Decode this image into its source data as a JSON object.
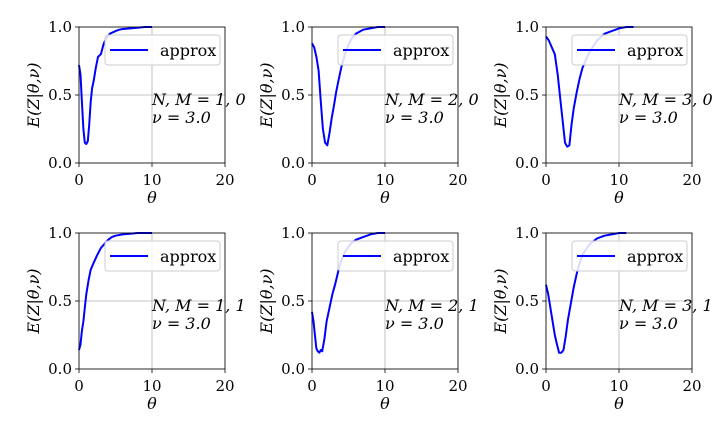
{
  "figure": {
    "colors": {
      "series": "#0000ff",
      "grid": "#b0b0b0",
      "axes": "#000000",
      "legend_border": "#cccccc"
    }
  },
  "chart_data": [
    {
      "type": "line",
      "xlabel": "θ",
      "ylabel": "E(Z|θ,ν)",
      "xlim": [
        0,
        20
      ],
      "ylim": [
        0,
        1
      ],
      "xticks": [
        "0",
        "10",
        "20"
      ],
      "yticks": [
        "0.0",
        "0.5",
        "1.0"
      ],
      "grid": true,
      "legend_placement": "top-right",
      "annotation": [
        "N, M = 1, 0",
        "ν = 3.0"
      ],
      "series": [
        {
          "name": "approx",
          "x": [
            0,
            0.2,
            0.4,
            0.6,
            0.8,
            1.0,
            1.2,
            1.4,
            1.6,
            1.8,
            2.0,
            2.3,
            2.6,
            3.0,
            3.4,
            3.8,
            4.2,
            4.6,
            5.0,
            5.5,
            6.0,
            7.0,
            8.0,
            9.0,
            10.0
          ],
          "y": [
            0.72,
            0.65,
            0.45,
            0.25,
            0.15,
            0.14,
            0.16,
            0.28,
            0.45,
            0.55,
            0.6,
            0.7,
            0.78,
            0.8,
            0.88,
            0.92,
            0.95,
            0.96,
            0.97,
            0.98,
            0.985,
            0.99,
            0.995,
            1.0,
            1.0
          ]
        }
      ]
    },
    {
      "type": "line",
      "xlabel": "θ",
      "ylabel": "E(Z|θ,ν)",
      "xlim": [
        0,
        20
      ],
      "ylim": [
        0,
        1
      ],
      "xticks": [
        "0",
        "10",
        "20"
      ],
      "yticks": [
        "0.0",
        "0.5",
        "1.0"
      ],
      "grid": true,
      "legend_placement": "top-right",
      "annotation": [
        "N, M = 2, 0",
        "ν = 3.0"
      ],
      "series": [
        {
          "name": "approx",
          "x": [
            0,
            0.3,
            0.6,
            0.9,
            1.2,
            1.5,
            1.8,
            2.1,
            2.4,
            2.7,
            3.0,
            3.3,
            3.6,
            4.0,
            4.5,
            5.0,
            5.5,
            6.0,
            7.0,
            8.0,
            9.0,
            10.0
          ],
          "y": [
            0.88,
            0.85,
            0.78,
            0.68,
            0.45,
            0.25,
            0.15,
            0.13,
            0.22,
            0.33,
            0.42,
            0.52,
            0.6,
            0.7,
            0.8,
            0.87,
            0.92,
            0.95,
            0.98,
            0.99,
            1.0,
            1.0
          ]
        }
      ]
    },
    {
      "type": "line",
      "xlabel": "θ",
      "ylabel": "E(Z|θ,ν)",
      "xlim": [
        0,
        20
      ],
      "ylim": [
        0,
        1
      ],
      "xticks": [
        "0",
        "10",
        "20"
      ],
      "yticks": [
        "0.0",
        "0.5",
        "1.0"
      ],
      "grid": true,
      "legend_placement": "top-right",
      "annotation": [
        "N, M = 3, 0",
        "ν = 3.0"
      ],
      "series": [
        {
          "name": "approx",
          "x": [
            0,
            0.4,
            0.8,
            1.2,
            1.6,
            2.0,
            2.3,
            2.6,
            2.9,
            3.2,
            3.5,
            3.8,
            4.2,
            4.6,
            5.0,
            5.5,
            6.0,
            7.0,
            8.0,
            9.0,
            10.0,
            11.0,
            12.0
          ],
          "y": [
            0.93,
            0.9,
            0.85,
            0.8,
            0.65,
            0.45,
            0.3,
            0.15,
            0.12,
            0.13,
            0.28,
            0.4,
            0.52,
            0.62,
            0.7,
            0.76,
            0.82,
            0.9,
            0.95,
            0.97,
            0.99,
            1.0,
            1.0
          ]
        }
      ]
    },
    {
      "type": "line",
      "xlabel": "θ",
      "ylabel": "E(Z|θ,ν)",
      "xlim": [
        0,
        20
      ],
      "ylim": [
        0,
        1
      ],
      "xticks": [
        "0",
        "10",
        "20"
      ],
      "yticks": [
        "0.0",
        "0.5",
        "1.0"
      ],
      "grid": true,
      "legend_placement": "top-right",
      "annotation": [
        "N, M = 1, 1",
        "ν = 3.0"
      ],
      "series": [
        {
          "name": "approx",
          "x": [
            0,
            0.2,
            0.4,
            0.6,
            0.8,
            1.0,
            1.3,
            1.6,
            2.0,
            2.5,
            3.0,
            3.5,
            4.0,
            4.5,
            5.0,
            6.0,
            7.0,
            8.0,
            9.0,
            10.0
          ],
          "y": [
            0.14,
            0.18,
            0.28,
            0.35,
            0.45,
            0.55,
            0.65,
            0.73,
            0.78,
            0.84,
            0.89,
            0.92,
            0.95,
            0.97,
            0.98,
            0.99,
            0.995,
            1.0,
            1.0,
            1.0
          ]
        }
      ]
    },
    {
      "type": "line",
      "xlabel": "θ",
      "ylabel": "E(Z|θ,ν)",
      "xlim": [
        0,
        20
      ],
      "ylim": [
        0,
        1
      ],
      "xticks": [
        "0",
        "10",
        "20"
      ],
      "yticks": [
        "0.0",
        "0.5",
        "1.0"
      ],
      "grid": true,
      "legend_placement": "top-right",
      "annotation": [
        "N, M = 2, 1",
        "ν = 3.0"
      ],
      "series": [
        {
          "name": "approx",
          "x": [
            0,
            0.2,
            0.4,
            0.6,
            0.8,
            1.0,
            1.2,
            1.4,
            1.7,
            2.0,
            2.4,
            2.8,
            3.2,
            3.6,
            4.0,
            4.5,
            5.0,
            5.5,
            6.0,
            7.0,
            8.0,
            9.0,
            10.0
          ],
          "y": [
            0.42,
            0.35,
            0.25,
            0.15,
            0.13,
            0.12,
            0.14,
            0.13,
            0.22,
            0.35,
            0.45,
            0.55,
            0.63,
            0.72,
            0.8,
            0.86,
            0.9,
            0.93,
            0.95,
            0.97,
            0.99,
            1.0,
            1.0
          ]
        }
      ]
    },
    {
      "type": "line",
      "xlabel": "θ",
      "ylabel": "E(Z|θ,ν)",
      "xlim": [
        0,
        20
      ],
      "ylim": [
        0,
        1
      ],
      "xticks": [
        "0",
        "10",
        "20"
      ],
      "yticks": [
        "0.0",
        "0.5",
        "1.0"
      ],
      "grid": true,
      "legend_placement": "top-right",
      "annotation": [
        "N, M = 3, 1",
        "ν = 3.0"
      ],
      "series": [
        {
          "name": "approx",
          "x": [
            0,
            0.3,
            0.6,
            0.9,
            1.2,
            1.5,
            1.8,
            2.1,
            2.4,
            2.7,
            3.0,
            3.4,
            3.8,
            4.2,
            4.6,
            5.0,
            5.5,
            6.0,
            7.0,
            8.0,
            9.0,
            10.0,
            11.0
          ],
          "y": [
            0.62,
            0.55,
            0.45,
            0.35,
            0.25,
            0.18,
            0.12,
            0.12,
            0.14,
            0.24,
            0.36,
            0.48,
            0.6,
            0.7,
            0.78,
            0.84,
            0.88,
            0.92,
            0.96,
            0.98,
            0.99,
            1.0,
            1.0
          ]
        }
      ]
    }
  ]
}
